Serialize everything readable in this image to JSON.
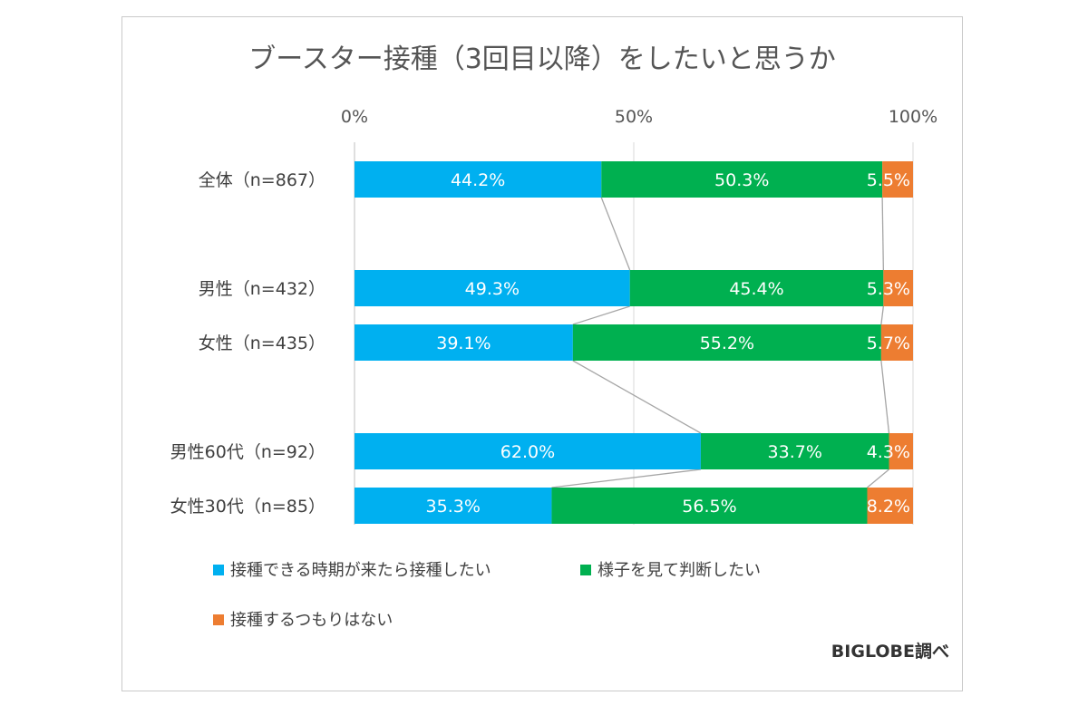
{
  "chart_data": {
    "type": "bar",
    "orientation": "horizontal",
    "stacked": "percent",
    "title": "ブースター接種（3回目以降）をしたいと思うか",
    "categories": [
      "全体（n=867）",
      "男性（n=432）",
      "女性（n=435）",
      "男性60代（n=92）",
      "女性30代（n=85）"
    ],
    "series": [
      {
        "name": "接種できる時期が来たら接種したい",
        "values": [
          44.2,
          49.3,
          39.1,
          62.0,
          35.3
        ],
        "labels": [
          "44.2%",
          "49.3%",
          "39.1%",
          "62.0%",
          "35.3%"
        ],
        "color": "#00b0f0"
      },
      {
        "name": "様子を見て判断したい",
        "values": [
          50.3,
          45.4,
          55.2,
          33.7,
          56.5
        ],
        "labels": [
          "50.3%",
          "45.4%",
          "55.2%",
          "33.7%",
          "56.5%"
        ],
        "color": "#00b050"
      },
      {
        "name": "接種するつもりはない",
        "values": [
          5.5,
          5.3,
          5.7,
          4.3,
          8.2
        ],
        "labels": [
          "5.5%",
          "5.3%",
          "5.7%",
          "4.3%",
          "8.2%"
        ],
        "color": "#ed7d31"
      }
    ],
    "x_ticks": [
      "0%",
      "50%",
      "100%"
    ],
    "xlim": [
      0,
      100
    ],
    "axis_position": "top",
    "grid": true,
    "series_lines": true,
    "legend": "bottom",
    "credit": "BIGLOBE調べ"
  }
}
